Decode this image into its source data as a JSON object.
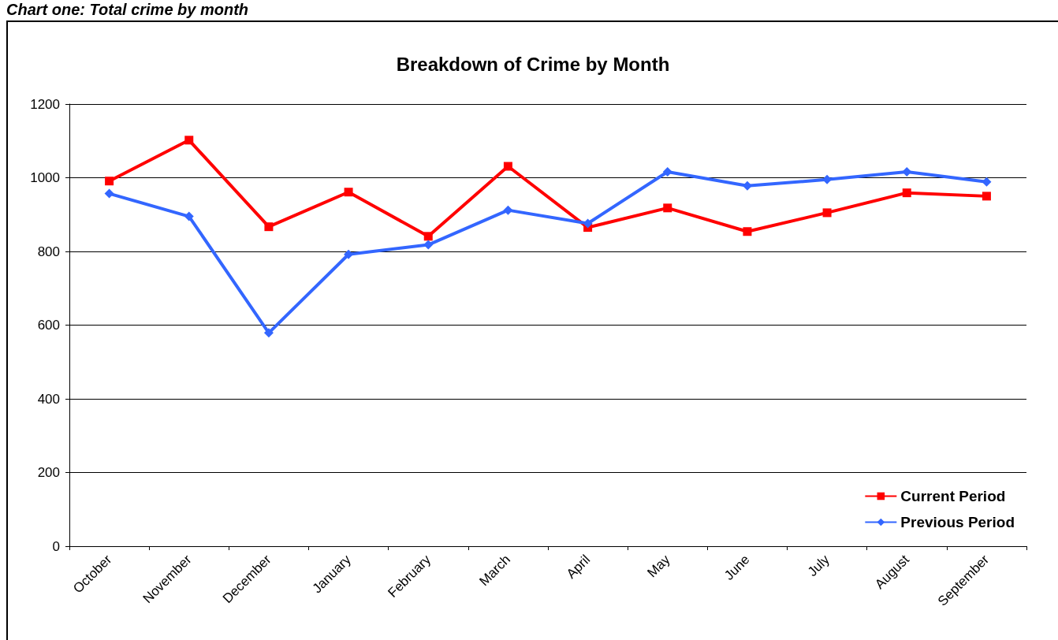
{
  "chart_data": {
    "type": "line",
    "title": "Breakdown of Crime by Month",
    "annotations": [
      "Chart one: Total crime by month"
    ],
    "categories": [
      "October",
      "November",
      "December",
      "January",
      "February",
      "March",
      "April",
      "May",
      "June",
      "July",
      "August",
      "September"
    ],
    "series": [
      {
        "name": "Current Period",
        "color": "#ff0000",
        "marker": "square",
        "values": [
          991,
          1102,
          867,
          961,
          841,
          1031,
          865,
          918,
          854,
          905,
          959,
          950
        ]
      },
      {
        "name": "Previous Period",
        "color": "#3366ff",
        "marker": "diamond",
        "values": [
          957,
          895,
          579,
          792,
          818,
          912,
          876,
          1016,
          978,
          995,
          1016,
          989
        ]
      }
    ],
    "ylim": [
      0,
      1200
    ],
    "yticks": [
      0,
      200,
      400,
      600,
      800,
      1000,
      1200
    ],
    "grid": "y",
    "legend": "bottom right",
    "line_style": "solid"
  }
}
